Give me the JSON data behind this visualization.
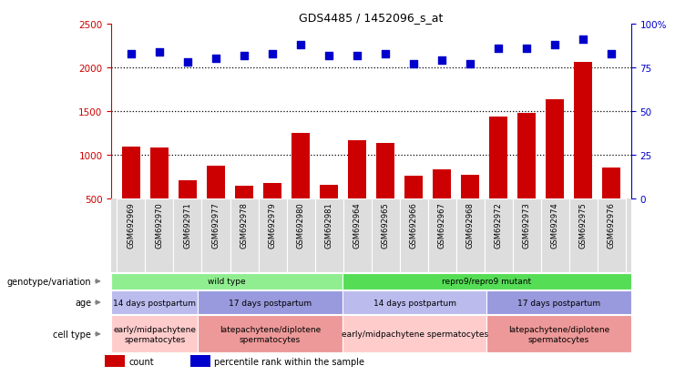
{
  "title": "GDS4485 / 1452096_s_at",
  "samples": [
    "GSM692969",
    "GSM692970",
    "GSM692971",
    "GSM692977",
    "GSM692978",
    "GSM692979",
    "GSM692980",
    "GSM692981",
    "GSM692964",
    "GSM692965",
    "GSM692966",
    "GSM692967",
    "GSM692968",
    "GSM692972",
    "GSM692973",
    "GSM692974",
    "GSM692975",
    "GSM692976"
  ],
  "counts": [
    1100,
    1090,
    710,
    880,
    650,
    680,
    1250,
    660,
    1170,
    1140,
    760,
    840,
    770,
    1440,
    1480,
    1640,
    2060,
    860
  ],
  "percentiles": [
    83,
    84,
    78,
    80,
    82,
    83,
    88,
    82,
    82,
    83,
    77,
    79,
    77,
    86,
    86,
    88,
    91,
    83
  ],
  "ylim_left": [
    500,
    2500
  ],
  "ylim_right": [
    0,
    100
  ],
  "yticks_left": [
    500,
    1000,
    1500,
    2000,
    2500
  ],
  "yticks_right": [
    0,
    25,
    50,
    75,
    100
  ],
  "bar_color": "#CC0000",
  "dot_color": "#0000CC",
  "dot_size": 40,
  "hline_values": [
    1000,
    1500,
    2000
  ],
  "groups": {
    "genotype": [
      {
        "label": "wild type",
        "start": 0,
        "end": 8,
        "color": "#90EE90"
      },
      {
        "label": "repro9/repro9 mutant",
        "start": 8,
        "end": 18,
        "color": "#55DD55"
      }
    ],
    "age": [
      {
        "label": "14 days postpartum",
        "start": 0,
        "end": 3,
        "color": "#BBBBEE"
      },
      {
        "label": "17 days postpartum",
        "start": 3,
        "end": 8,
        "color": "#9999DD"
      },
      {
        "label": "14 days postpartum",
        "start": 8,
        "end": 13,
        "color": "#BBBBEE"
      },
      {
        "label": "17 days postpartum",
        "start": 13,
        "end": 18,
        "color": "#9999DD"
      }
    ],
    "cell_type": [
      {
        "label": "early/midpachytene\nspermatocytes",
        "start": 0,
        "end": 3,
        "color": "#FFCCCC"
      },
      {
        "label": "latepachytene/diplotene\nspermatocytes",
        "start": 3,
        "end": 8,
        "color": "#EE9999"
      },
      {
        "label": "early/midpachytene spermatocytes",
        "start": 8,
        "end": 13,
        "color": "#FFCCCC"
      },
      {
        "label": "latepachytene/diplotene\nspermatocytes",
        "start": 13,
        "end": 18,
        "color": "#EE9999"
      }
    ]
  },
  "row_labels": [
    "genotype/variation",
    "age",
    "cell type"
  ],
  "legend_items": [
    {
      "label": "count",
      "color": "#CC0000"
    },
    {
      "label": "percentile rank within the sample",
      "color": "#0000CC"
    }
  ]
}
